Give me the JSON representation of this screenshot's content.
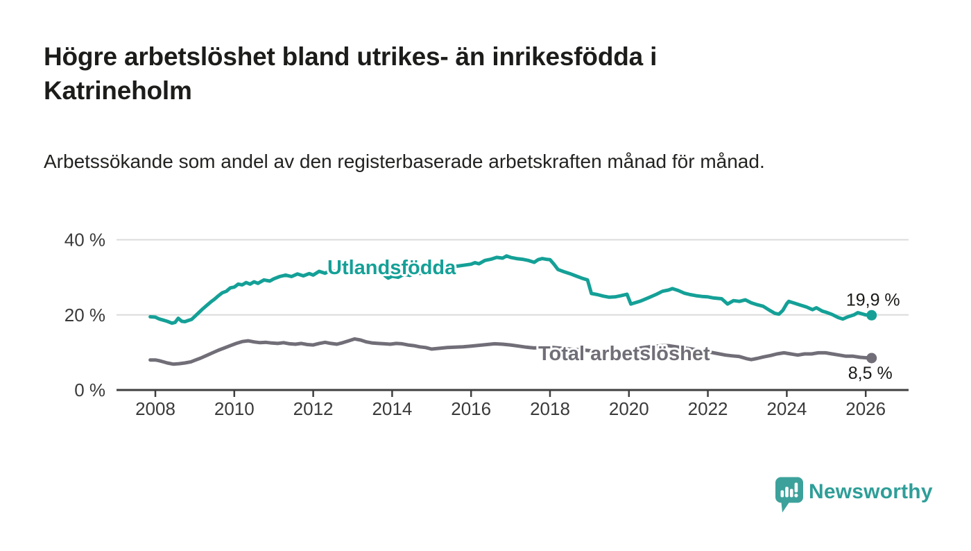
{
  "header": {
    "title": "Högre arbetslöshet bland utrikes- än inrikesfödda i Katrineholm",
    "subtitle": "Arbetssökande som andel av den registerbaserade arbetskraften månad för månad."
  },
  "footer": {
    "brand": "Newsworthy",
    "logo_icon": "speech-bubble-bar-chart-icon"
  },
  "colors": {
    "foreign_born": "#14a097",
    "total": "#716e78",
    "grid": "#dbdbdb",
    "axis": "#3f3f3f",
    "text": "#1c1c1a",
    "brand_teal": "#2e9e98"
  },
  "chart_data": {
    "type": "line",
    "title": "Högre arbetslöshet bland utrikes- än inrikesfödda i Katrineholm",
    "subtitle": "Arbetssökande som andel av den registerbaserade arbetskraften månad för månad.",
    "grid": true,
    "legend_position": "inline-labels",
    "x_axis": {
      "ticks": [
        2008,
        2010,
        2012,
        2014,
        2016,
        2018,
        2020,
        2022,
        2024,
        2026
      ],
      "range": [
        2007,
        2027.1
      ]
    },
    "y_axis": {
      "ticks": [
        {
          "value": 0,
          "label": "0 %"
        },
        {
          "value": 20,
          "label": "20 %"
        },
        {
          "value": 40,
          "label": "40 %"
        }
      ],
      "gridlines": [
        20,
        40
      ],
      "range": [
        0,
        40
      ]
    },
    "series": [
      {
        "name": "Utlandsfödda",
        "color": "#14a097",
        "end_label": "19,9 %",
        "end_value": 19.9,
        "points": [
          [
            2007.87,
            19.5
          ],
          [
            2008.0,
            19.4
          ],
          [
            2008.1,
            18.9
          ],
          [
            2008.2,
            18.6
          ],
          [
            2008.3,
            18.3
          ],
          [
            2008.42,
            17.8
          ],
          [
            2008.5,
            18.0
          ],
          [
            2008.58,
            19.1
          ],
          [
            2008.67,
            18.3
          ],
          [
            2008.75,
            18.2
          ],
          [
            2008.83,
            18.5
          ],
          [
            2008.92,
            18.8
          ],
          [
            2009.0,
            19.6
          ],
          [
            2009.1,
            20.6
          ],
          [
            2009.2,
            21.6
          ],
          [
            2009.3,
            22.5
          ],
          [
            2009.4,
            23.4
          ],
          [
            2009.5,
            24.2
          ],
          [
            2009.6,
            25.1
          ],
          [
            2009.7,
            25.9
          ],
          [
            2009.8,
            26.3
          ],
          [
            2009.9,
            27.2
          ],
          [
            2010.0,
            27.4
          ],
          [
            2010.1,
            28.2
          ],
          [
            2010.2,
            28.0
          ],
          [
            2010.3,
            28.6
          ],
          [
            2010.4,
            28.2
          ],
          [
            2010.5,
            28.8
          ],
          [
            2010.6,
            28.4
          ],
          [
            2010.75,
            29.3
          ],
          [
            2010.9,
            29.0
          ],
          [
            2011.0,
            29.6
          ],
          [
            2011.15,
            30.2
          ],
          [
            2011.3,
            30.6
          ],
          [
            2011.45,
            30.2
          ],
          [
            2011.6,
            30.9
          ],
          [
            2011.75,
            30.4
          ],
          [
            2011.9,
            31.0
          ],
          [
            2012.0,
            30.6
          ],
          [
            2012.15,
            31.6
          ],
          [
            2012.3,
            31.1
          ],
          [
            2012.45,
            31.9
          ],
          [
            2012.6,
            31.3
          ],
          [
            2012.75,
            31.7
          ],
          [
            2012.9,
            32.2
          ],
          [
            2013.05,
            31.9
          ],
          [
            2013.2,
            32.5
          ],
          [
            2013.35,
            32.2
          ],
          [
            2013.5,
            32.8
          ],
          [
            2013.65,
            32.0
          ],
          [
            2013.8,
            30.6
          ],
          [
            2013.9,
            29.8
          ],
          [
            2014.0,
            30.3
          ],
          [
            2014.15,
            30.0
          ],
          [
            2014.3,
            30.8
          ],
          [
            2014.45,
            30.5
          ],
          [
            2014.6,
            31.2
          ],
          [
            2014.75,
            31.0
          ],
          [
            2014.9,
            31.6
          ],
          [
            2015.0,
            31.4
          ],
          [
            2015.2,
            32.0
          ],
          [
            2015.4,
            32.4
          ],
          [
            2015.6,
            32.9
          ],
          [
            2015.8,
            33.2
          ],
          [
            2016.0,
            33.5
          ],
          [
            2016.1,
            33.9
          ],
          [
            2016.2,
            33.6
          ],
          [
            2016.35,
            34.5
          ],
          [
            2016.5,
            34.8
          ],
          [
            2016.65,
            35.3
          ],
          [
            2016.8,
            35.1
          ],
          [
            2016.9,
            35.7
          ],
          [
            2017.0,
            35.3
          ],
          [
            2017.15,
            35.0
          ],
          [
            2017.3,
            34.8
          ],
          [
            2017.45,
            34.5
          ],
          [
            2017.6,
            34.0
          ],
          [
            2017.7,
            34.7
          ],
          [
            2017.8,
            35.0
          ],
          [
            2017.9,
            34.8
          ],
          [
            2018.0,
            34.7
          ],
          [
            2018.1,
            33.5
          ],
          [
            2018.2,
            32.1
          ],
          [
            2018.35,
            31.5
          ],
          [
            2018.5,
            31.0
          ],
          [
            2018.65,
            30.4
          ],
          [
            2018.8,
            29.8
          ],
          [
            2018.95,
            29.3
          ],
          [
            2019.05,
            25.7
          ],
          [
            2019.2,
            25.4
          ],
          [
            2019.35,
            25.0
          ],
          [
            2019.5,
            24.7
          ],
          [
            2019.65,
            24.8
          ],
          [
            2019.8,
            25.1
          ],
          [
            2019.95,
            25.5
          ],
          [
            2020.05,
            22.9
          ],
          [
            2020.15,
            23.2
          ],
          [
            2020.3,
            23.7
          ],
          [
            2020.5,
            24.6
          ],
          [
            2020.7,
            25.5
          ],
          [
            2020.85,
            26.3
          ],
          [
            2021.0,
            26.6
          ],
          [
            2021.1,
            27.0
          ],
          [
            2021.25,
            26.5
          ],
          [
            2021.4,
            25.8
          ],
          [
            2021.55,
            25.4
          ],
          [
            2021.7,
            25.1
          ],
          [
            2021.85,
            24.9
          ],
          [
            2022.0,
            24.8
          ],
          [
            2022.15,
            24.5
          ],
          [
            2022.35,
            24.3
          ],
          [
            2022.5,
            22.9
          ],
          [
            2022.65,
            23.8
          ],
          [
            2022.8,
            23.6
          ],
          [
            2022.95,
            24.0
          ],
          [
            2023.1,
            23.2
          ],
          [
            2023.25,
            22.7
          ],
          [
            2023.4,
            22.3
          ],
          [
            2023.55,
            21.3
          ],
          [
            2023.7,
            20.4
          ],
          [
            2023.8,
            20.2
          ],
          [
            2023.9,
            21.2
          ],
          [
            2024.0,
            23.0
          ],
          [
            2024.05,
            23.6
          ],
          [
            2024.2,
            23.1
          ],
          [
            2024.35,
            22.6
          ],
          [
            2024.5,
            22.1
          ],
          [
            2024.65,
            21.4
          ],
          [
            2024.75,
            21.9
          ],
          [
            2024.9,
            21.0
          ],
          [
            2025.0,
            20.7
          ],
          [
            2025.15,
            20.1
          ],
          [
            2025.3,
            19.3
          ],
          [
            2025.42,
            18.9
          ],
          [
            2025.55,
            19.5
          ],
          [
            2025.7,
            20.0
          ],
          [
            2025.8,
            20.6
          ],
          [
            2025.9,
            20.3
          ],
          [
            2026.0,
            20.0
          ],
          [
            2026.15,
            19.9
          ]
        ]
      },
      {
        "name": "Total arbetslöshet",
        "color": "#716e78",
        "end_label": "8,5 %",
        "end_value": 8.5,
        "points": [
          [
            2007.87,
            8.0
          ],
          [
            2008.0,
            8.0
          ],
          [
            2008.1,
            7.8
          ],
          [
            2008.2,
            7.5
          ],
          [
            2008.3,
            7.2
          ],
          [
            2008.45,
            6.9
          ],
          [
            2008.6,
            7.0
          ],
          [
            2008.75,
            7.2
          ],
          [
            2008.9,
            7.5
          ],
          [
            2009.0,
            7.9
          ],
          [
            2009.15,
            8.5
          ],
          [
            2009.3,
            9.2
          ],
          [
            2009.45,
            9.9
          ],
          [
            2009.6,
            10.6
          ],
          [
            2009.75,
            11.2
          ],
          [
            2009.9,
            11.8
          ],
          [
            2010.05,
            12.4
          ],
          [
            2010.2,
            12.9
          ],
          [
            2010.35,
            13.1
          ],
          [
            2010.5,
            12.8
          ],
          [
            2010.65,
            12.6
          ],
          [
            2010.8,
            12.7
          ],
          [
            2010.95,
            12.5
          ],
          [
            2011.1,
            12.4
          ],
          [
            2011.25,
            12.6
          ],
          [
            2011.4,
            12.3
          ],
          [
            2011.55,
            12.2
          ],
          [
            2011.7,
            12.4
          ],
          [
            2011.85,
            12.1
          ],
          [
            2012.0,
            12.0
          ],
          [
            2012.15,
            12.4
          ],
          [
            2012.3,
            12.7
          ],
          [
            2012.45,
            12.4
          ],
          [
            2012.6,
            12.2
          ],
          [
            2012.75,
            12.6
          ],
          [
            2012.9,
            13.1
          ],
          [
            2013.05,
            13.6
          ],
          [
            2013.2,
            13.3
          ],
          [
            2013.35,
            12.8
          ],
          [
            2013.5,
            12.5
          ],
          [
            2013.65,
            12.4
          ],
          [
            2013.8,
            12.3
          ],
          [
            2013.95,
            12.2
          ],
          [
            2014.1,
            12.4
          ],
          [
            2014.25,
            12.3
          ],
          [
            2014.4,
            12.0
          ],
          [
            2014.55,
            11.8
          ],
          [
            2014.7,
            11.5
          ],
          [
            2014.85,
            11.3
          ],
          [
            2015.0,
            10.9
          ],
          [
            2015.2,
            11.1
          ],
          [
            2015.4,
            11.3
          ],
          [
            2015.6,
            11.4
          ],
          [
            2015.8,
            11.5
          ],
          [
            2016.0,
            11.7
          ],
          [
            2016.2,
            11.9
          ],
          [
            2016.4,
            12.1
          ],
          [
            2016.6,
            12.3
          ],
          [
            2016.8,
            12.2
          ],
          [
            2017.0,
            12.0
          ],
          [
            2017.2,
            11.7
          ],
          [
            2017.4,
            11.4
          ],
          [
            2017.6,
            11.2
          ],
          [
            2017.8,
            11.3
          ],
          [
            2018.0,
            11.4
          ],
          [
            2018.2,
            11.2
          ],
          [
            2018.4,
            11.0
          ],
          [
            2018.6,
            10.8
          ],
          [
            2018.8,
            10.7
          ],
          [
            2019.0,
            10.5
          ],
          [
            2019.2,
            10.4
          ],
          [
            2019.4,
            10.3
          ],
          [
            2019.6,
            10.2
          ],
          [
            2019.8,
            10.1
          ],
          [
            2020.0,
            10.0
          ],
          [
            2020.15,
            10.6
          ],
          [
            2020.3,
            11.2
          ],
          [
            2020.5,
            11.5
          ],
          [
            2020.7,
            11.7
          ],
          [
            2020.85,
            11.8
          ],
          [
            2021.0,
            11.8
          ],
          [
            2021.2,
            11.5
          ],
          [
            2021.4,
            11.2
          ],
          [
            2021.6,
            10.9
          ],
          [
            2021.8,
            10.6
          ],
          [
            2022.0,
            10.2
          ],
          [
            2022.2,
            9.8
          ],
          [
            2022.45,
            9.3
          ],
          [
            2022.6,
            9.1
          ],
          [
            2022.8,
            8.9
          ],
          [
            2023.0,
            8.3
          ],
          [
            2023.1,
            8.1
          ],
          [
            2023.25,
            8.4
          ],
          [
            2023.4,
            8.8
          ],
          [
            2023.6,
            9.2
          ],
          [
            2023.75,
            9.6
          ],
          [
            2023.93,
            9.9
          ],
          [
            2024.1,
            9.6
          ],
          [
            2024.28,
            9.3
          ],
          [
            2024.45,
            9.6
          ],
          [
            2024.63,
            9.6
          ],
          [
            2024.8,
            9.9
          ],
          [
            2024.98,
            9.9
          ],
          [
            2025.15,
            9.6
          ],
          [
            2025.33,
            9.3
          ],
          [
            2025.5,
            9.0
          ],
          [
            2025.68,
            9.0
          ],
          [
            2025.86,
            8.7
          ],
          [
            2026.0,
            8.6
          ],
          [
            2026.15,
            8.5
          ]
        ]
      }
    ]
  }
}
